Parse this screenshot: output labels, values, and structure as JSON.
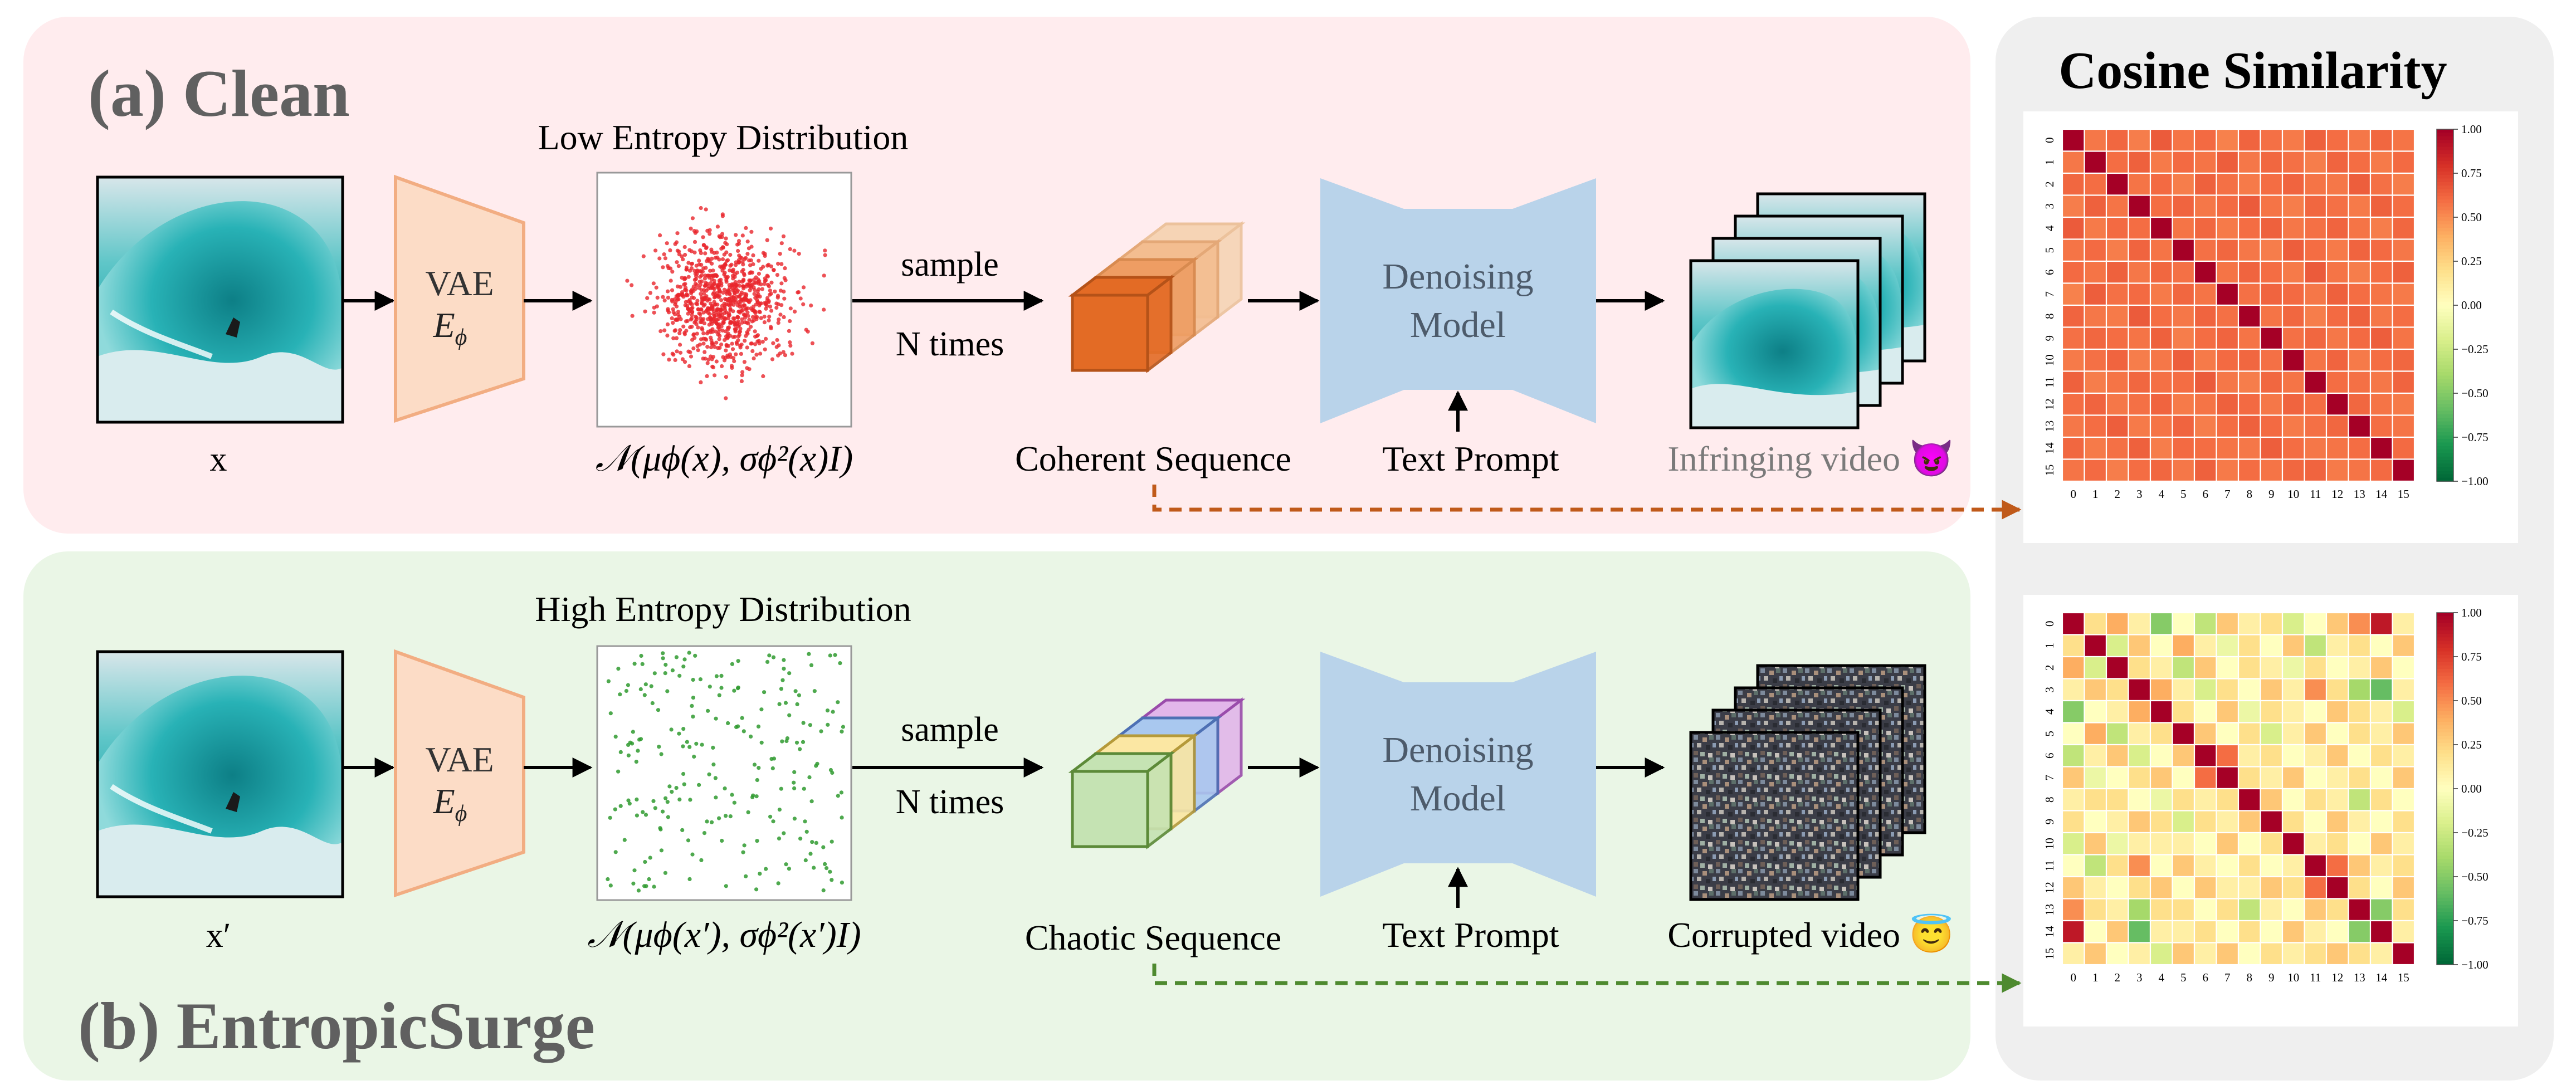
{
  "panel_a": {
    "title": "(a) Clean",
    "input_label": "x",
    "vae_label": "VAE",
    "encoder_label": "E",
    "encoder_sub": "ϕ",
    "dist_title": "Low Entropy Distribution",
    "dist_formula": "𝒩(μϕ(x), σϕ²(x)I)",
    "sample_line1": "sample",
    "sample_line2": "N times",
    "sequence_label": "Coherent Sequence",
    "model_line1": "Denoising",
    "model_line2": "Model",
    "prompt_label": "Text Prompt",
    "output_label": "Infringing video 😈",
    "point_color": "#e8262c",
    "cube_colors": [
      "#e36b25",
      "#ee9d63",
      "#f3bd90",
      "#f6d4b5"
    ]
  },
  "panel_b": {
    "title": "(b) EntropicSurge",
    "input_label": "x′",
    "vae_label": "VAE",
    "encoder_label": "E",
    "encoder_sub": "ϕ",
    "dist_title": "High Entropy Distribution",
    "dist_formula": "𝒩(μϕ(x′), σϕ²(x′)I)",
    "sample_line1": "sample",
    "sample_line2": "N times",
    "sequence_label": "Chaotic Sequence",
    "model_line1": "Denoising",
    "model_line2": "Model",
    "prompt_label": "Text Prompt",
    "output_label": "Corrupted video 😇",
    "point_color": "#2f9a2f",
    "cube_colors": [
      "#c5e3b3",
      "#fbe7a3",
      "#a9c8ef",
      "#e2b6ea"
    ]
  },
  "similarity": {
    "title": "Cosine Similarity",
    "tick_labels": [
      "0",
      "1",
      "2",
      "3",
      "4",
      "5",
      "6",
      "7",
      "8",
      "9",
      "10",
      "11",
      "12",
      "13",
      "14",
      "15"
    ],
    "colorbar_ticks": [
      "1.00",
      "0.75",
      "0.50",
      "0.25",
      "0.00",
      "−0.25",
      "−0.50",
      "−0.75",
      "−1.00"
    ]
  },
  "colors": {
    "panel_a_bg": "#ffecee",
    "panel_b_bg": "#eaf6e6",
    "right_bg": "#efefef",
    "vae_fill": "#fcdcc6",
    "vae_stroke": "#f2ad82",
    "model_fill": "#b9d3ea",
    "arrow_a": "#c05a1a",
    "arrow_b": "#4e8a2f",
    "title_gray": "#606060"
  },
  "chart_data": [
    {
      "type": "heatmap",
      "title": "Cosine Similarity (Clean)",
      "x": [
        0,
        1,
        2,
        3,
        4,
        5,
        6,
        7,
        8,
        9,
        10,
        11,
        12,
        13,
        14,
        15
      ],
      "y": [
        0,
        1,
        2,
        3,
        4,
        5,
        6,
        7,
        8,
        9,
        10,
        11,
        12,
        13,
        14,
        15
      ],
      "diagonal": 1.0,
      "values": [
        [
          1.0,
          0.57,
          0.62,
          0.55,
          0.66,
          0.58,
          0.61,
          0.54,
          0.63,
          0.59,
          0.56,
          0.64,
          0.6,
          0.57,
          0.62,
          0.58
        ],
        [
          0.57,
          1.0,
          0.6,
          0.64,
          0.56,
          0.61,
          0.58,
          0.65,
          0.57,
          0.62,
          0.59,
          0.55,
          0.63,
          0.6,
          0.56,
          0.61
        ],
        [
          0.62,
          0.6,
          1.0,
          0.58,
          0.61,
          0.55,
          0.64,
          0.59,
          0.56,
          0.6,
          0.63,
          0.58,
          0.57,
          0.65,
          0.59,
          0.55
        ],
        [
          0.55,
          0.64,
          0.58,
          1.0,
          0.6,
          0.63,
          0.57,
          0.61,
          0.66,
          0.58,
          0.55,
          0.62,
          0.59,
          0.56,
          0.64,
          0.6
        ],
        [
          0.66,
          0.56,
          0.61,
          0.6,
          1.0,
          0.58,
          0.62,
          0.56,
          0.6,
          0.64,
          0.57,
          0.59,
          0.63,
          0.58,
          0.55,
          0.62
        ],
        [
          0.58,
          0.61,
          0.55,
          0.63,
          0.58,
          1.0,
          0.59,
          0.62,
          0.57,
          0.55,
          0.65,
          0.6,
          0.56,
          0.63,
          0.61,
          0.57
        ],
        [
          0.61,
          0.58,
          0.64,
          0.57,
          0.62,
          0.59,
          1.0,
          0.58,
          0.63,
          0.6,
          0.56,
          0.66,
          0.58,
          0.55,
          0.6,
          0.64
        ],
        [
          0.54,
          0.65,
          0.59,
          0.61,
          0.56,
          0.62,
          0.58,
          1.0,
          0.59,
          0.63,
          0.61,
          0.57,
          0.64,
          0.6,
          0.58,
          0.56
        ],
        [
          0.63,
          0.57,
          0.56,
          0.66,
          0.6,
          0.57,
          0.63,
          0.59,
          1.0,
          0.58,
          0.62,
          0.55,
          0.61,
          0.64,
          0.57,
          0.6
        ],
        [
          0.59,
          0.62,
          0.6,
          0.58,
          0.64,
          0.55,
          0.6,
          0.63,
          0.58,
          1.0,
          0.59,
          0.62,
          0.57,
          0.61,
          0.65,
          0.58
        ],
        [
          0.56,
          0.59,
          0.63,
          0.55,
          0.57,
          0.65,
          0.56,
          0.61,
          0.62,
          0.59,
          1.0,
          0.58,
          0.63,
          0.56,
          0.6,
          0.62
        ],
        [
          0.64,
          0.55,
          0.58,
          0.62,
          0.59,
          0.6,
          0.66,
          0.57,
          0.55,
          0.62,
          0.58,
          1.0,
          0.6,
          0.59,
          0.57,
          0.63
        ],
        [
          0.6,
          0.63,
          0.57,
          0.59,
          0.63,
          0.56,
          0.58,
          0.64,
          0.61,
          0.57,
          0.63,
          0.6,
          1.0,
          0.62,
          0.58,
          0.56
        ],
        [
          0.57,
          0.6,
          0.65,
          0.56,
          0.58,
          0.63,
          0.55,
          0.6,
          0.64,
          0.61,
          0.56,
          0.59,
          0.62,
          1.0,
          0.6,
          0.58
        ],
        [
          0.62,
          0.56,
          0.59,
          0.64,
          0.55,
          0.61,
          0.6,
          0.58,
          0.57,
          0.65,
          0.6,
          0.57,
          0.58,
          0.6,
          1.0,
          0.61
        ],
        [
          0.58,
          0.61,
          0.55,
          0.6,
          0.62,
          0.57,
          0.64,
          0.56,
          0.6,
          0.58,
          0.62,
          0.63,
          0.56,
          0.58,
          0.61,
          1.0
        ]
      ],
      "colorbar": {
        "min": -1.0,
        "max": 1.0,
        "colormap": "RdYlGn_r"
      }
    },
    {
      "type": "heatmap",
      "title": "Cosine Similarity (EntropicSurge)",
      "x": [
        0,
        1,
        2,
        3,
        4,
        5,
        6,
        7,
        8,
        9,
        10,
        11,
        12,
        13,
        14,
        15
      ],
      "y": [
        0,
        1,
        2,
        3,
        4,
        5,
        6,
        7,
        8,
        9,
        10,
        11,
        12,
        13,
        14,
        15
      ],
      "diagonal": 1.0,
      "values": [
        [
          1.0,
          0.2,
          0.4,
          0.1,
          -0.5,
          0.0,
          -0.3,
          0.3,
          0.1,
          0.2,
          -0.2,
          0.0,
          0.3,
          0.5,
          0.9,
          0.1
        ],
        [
          0.2,
          1.0,
          -0.2,
          0.3,
          0.0,
          0.4,
          0.1,
          -0.1,
          0.2,
          0.0,
          0.3,
          -0.3,
          0.1,
          0.2,
          0.0,
          0.3
        ],
        [
          0.4,
          -0.2,
          1.0,
          0.2,
          0.1,
          -0.3,
          0.3,
          0.0,
          0.2,
          0.1,
          -0.1,
          0.2,
          0.0,
          0.1,
          0.3,
          0.0
        ],
        [
          0.1,
          0.3,
          0.2,
          1.0,
          0.4,
          0.1,
          -0.2,
          0.2,
          0.0,
          0.3,
          0.1,
          0.5,
          0.2,
          -0.4,
          -0.6,
          0.1
        ],
        [
          -0.5,
          0.0,
          0.1,
          0.4,
          1.0,
          0.2,
          0.0,
          0.3,
          -0.1,
          0.2,
          0.1,
          0.0,
          0.3,
          0.2,
          0.1,
          -0.2
        ],
        [
          0.0,
          0.4,
          -0.3,
          0.1,
          0.2,
          1.0,
          0.3,
          0.0,
          0.2,
          -0.2,
          0.1,
          0.3,
          0.0,
          0.2,
          0.1,
          0.3
        ],
        [
          -0.3,
          0.1,
          0.3,
          -0.2,
          0.0,
          0.3,
          1.0,
          0.6,
          0.1,
          0.2,
          0.0,
          0.1,
          0.3,
          0.0,
          0.2,
          0.1
        ],
        [
          0.3,
          -0.1,
          0.0,
          0.2,
          0.3,
          0.0,
          0.6,
          1.0,
          0.2,
          0.1,
          0.3,
          0.0,
          0.1,
          0.2,
          0.0,
          0.3
        ],
        [
          0.1,
          0.2,
          0.2,
          0.0,
          -0.1,
          0.2,
          0.1,
          0.2,
          1.0,
          0.3,
          0.0,
          0.2,
          0.1,
          -0.3,
          0.2,
          0.0
        ],
        [
          0.2,
          0.0,
          0.1,
          0.3,
          0.2,
          -0.2,
          0.2,
          0.1,
          0.3,
          1.0,
          0.2,
          0.0,
          0.3,
          0.1,
          0.0,
          0.2
        ],
        [
          -0.2,
          0.3,
          -0.1,
          0.1,
          0.1,
          0.1,
          0.0,
          0.3,
          0.0,
          0.2,
          1.0,
          0.1,
          0.2,
          0.0,
          0.3,
          0.1
        ],
        [
          0.0,
          -0.3,
          0.2,
          0.5,
          0.0,
          0.3,
          0.1,
          0.0,
          0.2,
          0.0,
          0.1,
          1.0,
          0.6,
          0.3,
          0.1,
          0.2
        ],
        [
          0.3,
          0.1,
          0.0,
          0.2,
          0.3,
          0.0,
          0.3,
          0.1,
          0.1,
          0.3,
          0.2,
          0.6,
          1.0,
          0.2,
          0.0,
          0.3
        ],
        [
          0.5,
          0.2,
          0.1,
          -0.4,
          0.2,
          0.2,
          0.0,
          0.2,
          -0.3,
          0.1,
          0.0,
          0.3,
          0.2,
          1.0,
          -0.5,
          0.2
        ],
        [
          0.9,
          0.0,
          0.3,
          -0.6,
          0.1,
          0.1,
          0.2,
          0.0,
          0.2,
          0.0,
          0.3,
          0.1,
          0.0,
          -0.5,
          1.0,
          0.1
        ],
        [
          0.1,
          0.3,
          0.0,
          0.1,
          -0.2,
          0.3,
          0.1,
          0.3,
          0.0,
          0.2,
          0.1,
          0.2,
          0.3,
          0.2,
          0.1,
          1.0
        ]
      ],
      "colorbar": {
        "min": -1.0,
        "max": 1.0,
        "colormap": "RdYlGn_r"
      }
    }
  ]
}
